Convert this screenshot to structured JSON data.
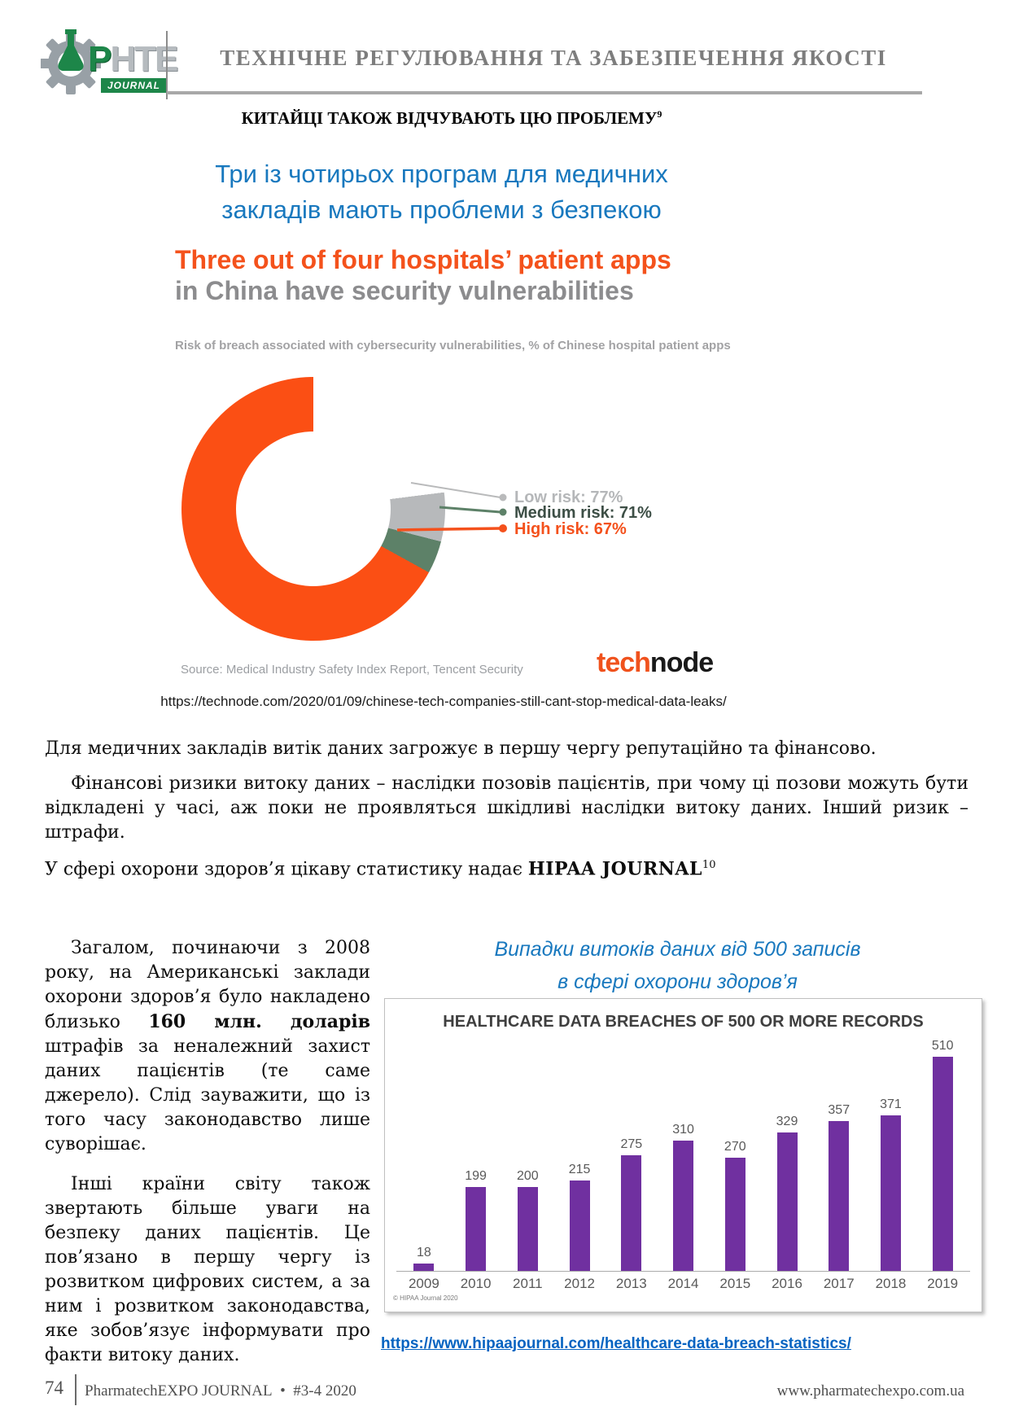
{
  "header": {
    "logo_p": "P",
    "logo_rest": "HTE",
    "logo_sub": "JOURNAL",
    "title": "ТЕХНІЧНЕ РЕГУЛЮВАННЯ ТА ЗАБЕЗПЕЧЕННЯ ЯКОСТІ"
  },
  "headings": {
    "section": "КИТАЙЦІ ТАКОЖ ВІДЧУВАЮТЬ ЦЮ ПРОБЛЕМУ",
    "section_footnote": "9",
    "blue_line1": "Три із чотирьох програм для медичних",
    "blue_line2": "закладів мають проблеми з безпекою"
  },
  "donut_figure": {
    "title_orange": "Three out of four hospitals’ patient apps",
    "title_gray": "in China have security vulnerabilities",
    "subtitle": "Risk of breach associated with cybersecurity vulnerabilities, % of Chinese hospital patient apps",
    "source": "Source: Medical Industry Safety Index Report, Tencent Security",
    "brand_orange": "tech",
    "brand_black": "node",
    "url": "https://technode.com/2020/01/09/chinese-tech-companies-still-cant-stop-medical-data-leaks/"
  },
  "body": {
    "p1": "Для медичних закладів витік даних загрожує в першу чергу репутаційно та фінансово.",
    "p2": "Фінансові ризики витоку даних – наслідки позовів пацієнтів, при чому ці позови можуть бути відкладені у часі, аж поки не проявляться шкідливі наслідки витоку даних. Інший ризик – штрафи.",
    "p3_before": "У сфері охорони здоров’я цікаву статистику надає ",
    "p3_bold": "HIPAA JOURNAL",
    "p3_footnote": "10"
  },
  "left_column": {
    "p1_before": "Загалом, починаючи з 2008 року, на Американські заклади охорони здоров’я було накладено близько ",
    "p1_bold": "160 млн. доларів",
    "p1_after": " штрафів за неналежний захист даних пацієнтів (те саме джерело). Слід зауважити, що із того часу законодавство лише суворішає.",
    "p2": "Інші країни світу також звертають більше уваги на безпеку даних пацієнтів. Це пов’язано в першу чергу із розвитком цифрових систем, а за ним і розвитком законодавства, яке зобов’язує інформувати про факти витоку даних."
  },
  "right_column": {
    "heading_line1": "Випадки витоків даних від 500 записів",
    "heading_line2": "в сфері охорони здоров’я",
    "link": "https://www.hipaajournal.com/healthcare-data-breach-statistics/"
  },
  "chart_data": [
    {
      "type": "pie",
      "subtype": "donut",
      "title": "Three out of four hospitals’ patient apps in China have security vulnerabilities",
      "subtitle": "Risk of breach associated with cybersecurity vulnerabilities, % of Chinese hospital patient apps",
      "labels": [
        "Low risk: 77%",
        "Medium risk: 71%",
        "High risk: 67%"
      ],
      "series": [
        {
          "name": "Low risk",
          "value": 77,
          "color": "#b7b9bb"
        },
        {
          "name": "Medium risk",
          "value": 71,
          "color": "#5d8168"
        },
        {
          "name": "High risk",
          "value": 67,
          "color": "#fb4f14"
        }
      ],
      "note": "cumulative shares of one donut; remainder to 100% is blank",
      "source": "Source: Medical Industry Safety Index Report, Tencent Security",
      "legend_position": "right"
    },
    {
      "type": "bar",
      "title": "HEALTHCARE DATA BREACHES OF 500 OR MORE RECORDS",
      "categories": [
        "2009",
        "2010",
        "2011",
        "2012",
        "2013",
        "2014",
        "2015",
        "2016",
        "2017",
        "2018",
        "2019"
      ],
      "values": [
        18,
        199,
        200,
        215,
        275,
        310,
        270,
        329,
        357,
        371,
        510
      ],
      "bar_color": "#7030a0",
      "ylim": [
        0,
        560
      ],
      "grid": false,
      "copyright": "© HIPAA Journal 2020"
    }
  ],
  "footer": {
    "page_number": "74",
    "journal": "PharmatechEXPO JOURNAL",
    "separator": "•",
    "issue": "#3-4 2020",
    "website": "www.pharmatechexpo.com.ua"
  },
  "colors": {
    "accent_orange": "#fb4f14",
    "accent_blue": "#1878be",
    "link_blue": "#0563c1",
    "bar_purple": "#7030a0",
    "header_gray": "#7d7d7d",
    "logo_green": "#1d8649"
  }
}
